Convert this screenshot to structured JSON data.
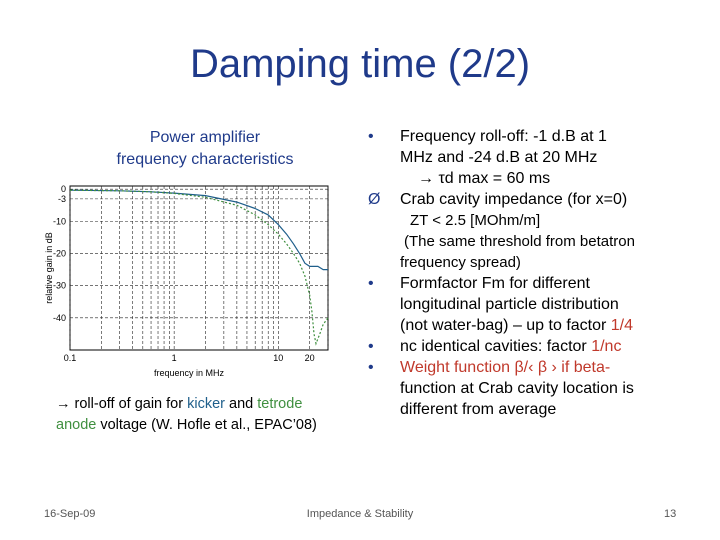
{
  "slide": {
    "title": "Damping time (2/2)",
    "footer_date": "16-Sep-09",
    "footer_center": "Impedance & Stability",
    "footer_page": "13"
  },
  "chart_caption": {
    "line1": "Power amplifier",
    "line2": "frequency characteristics"
  },
  "bottom_note": {
    "prefix": "→ roll-off of gain for ",
    "kicker": "kicker",
    "and": " and ",
    "tetrode": "tetrode",
    "anode": "anode",
    "rest": " voltage (W. Hofle et al., EPAC’08)"
  },
  "bullets": {
    "b1_l1": "Frequency roll-off: -1 d.B at 1",
    "b1_l2": "MHz and -24 d.B at 20 MHz",
    "b1_l3": "→ τd max = 60 ms",
    "b2_l1": "Crab cavity impedance (for x=0)",
    "b2_l2a": "ZT",
    "b2_l2b": " < 2.5 [MOhm/m]",
    "b2_l3": "(The same threshold from betatron",
    "b2_l4": "frequency spread)",
    "b3_l1": "Formfactor Fm for different",
    "b3_l2": "longitudinal particle distribution",
    "b3_l3a": "(not water-bag) – up to factor ",
    "b3_l3b": "1/4",
    "b4_l1a": "nc identical cavities: factor ",
    "b4_l1b": "1/nc",
    "b5_l1": "Weight function β/‹ β › if beta-",
    "b5_l2": "function at Crab cavity location is",
    "b5_l3": "different from average",
    "bullet_glyph": "•",
    "arrow_glyph": "Ø"
  },
  "chart_data": {
    "type": "line",
    "xscale": "log",
    "xlim": [
      0.1,
      30
    ],
    "ylim": [
      -50,
      1
    ],
    "xlabel": "frequency in MHz",
    "ylabel": "relative gain in dB",
    "yticks": [
      "0",
      "-3",
      "-10",
      "-20",
      "-30",
      "-40"
    ],
    "ytick_values": [
      0,
      -3,
      -10,
      -20,
      -30,
      -40
    ],
    "xticks": [
      "0.1",
      "1",
      "10",
      "20"
    ],
    "xtick_values": [
      0.1,
      1,
      10,
      20
    ],
    "series": [
      {
        "color": "#1f5f8b",
        "dash": "none",
        "x": [
          0.1,
          0.3,
          0.6,
          1,
          2,
          4,
          6,
          8,
          10,
          12,
          14,
          16,
          18,
          20,
          22,
          24,
          27,
          30
        ],
        "y": [
          -0.3,
          -0.5,
          -0.8,
          -1.2,
          -2.0,
          -4,
          -6,
          -8,
          -11,
          -14,
          -17,
          -20,
          -23,
          -24,
          -24,
          -24,
          -25,
          -25
        ]
      },
      {
        "color": "#3f8f3f",
        "dash": "2,2",
        "x": [
          0.1,
          0.3,
          0.6,
          1,
          2,
          4,
          6,
          8,
          10,
          12,
          14,
          16,
          18,
          20,
          21,
          22,
          23,
          25,
          27,
          30
        ],
        "y": [
          -0.3,
          -0.5,
          -0.8,
          -1.3,
          -2.5,
          -5,
          -8,
          -11,
          -14,
          -17,
          -20,
          -23,
          -27,
          -33,
          -38,
          -45,
          -48,
          -45,
          -42,
          -40
        ]
      }
    ]
  }
}
